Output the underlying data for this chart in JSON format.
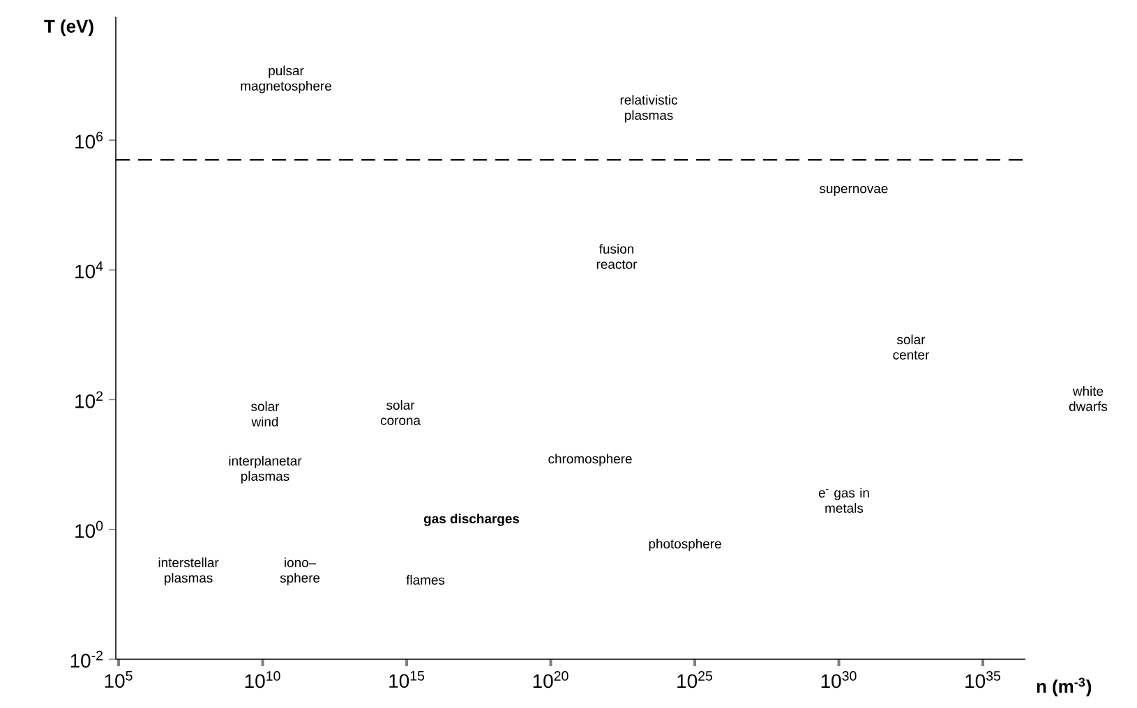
{
  "chart_data": {
    "type": "scatter",
    "xlabel": "n (m$^{-3}$)",
    "ylabel": "T (eV)",
    "log": "xy",
    "xlim": [
      80000.0,
      3e+36
    ],
    "ylim": [
      0.01,
      80000000.0
    ],
    "xticks": [
      {
        "value": 100000.0,
        "label": "10$^{5}$"
      },
      {
        "value": 10000000000.0,
        "label": "10$^{10}$"
      },
      {
        "value": 1000000000000000.0,
        "label": "10$^{15}$"
      },
      {
        "value": 1e+20,
        "label": "10$^{20}$"
      },
      {
        "value": 1e+25,
        "label": "10$^{25}$"
      },
      {
        "value": 1e+30,
        "label": "10$^{30}$"
      },
      {
        "value": 1e+35,
        "label": "10$^{35}$"
      }
    ],
    "yticks": [
      {
        "value": 0.01,
        "label": "10$^{-2}$"
      },
      {
        "value": 1,
        "label": "10$^{0}$"
      },
      {
        "value": 100,
        "label": "10$^{2}$"
      },
      {
        "value": 10000.0,
        "label": "10$^{4}$"
      },
      {
        "value": 1000000.0,
        "label": "10$^{6}$"
      }
    ],
    "ref_lines": [
      {
        "axis": "y",
        "value": 500000.0,
        "line_style": "dashed",
        "color": "#000000"
      }
    ],
    "annotations": [
      "pulsar magnetosphere",
      "relativistic plasmas",
      "supernovae",
      "fusion reactor",
      "solar center",
      "white dwarfs",
      "solar wind",
      "solar corona",
      "interplanetar plasmas",
      "chromosphere",
      "e$^{-}$ gas in metals",
      "**gas discharges**",
      "photosphere",
      "interstellar plasmas",
      "iono–sphere",
      "flames"
    ]
  }
}
